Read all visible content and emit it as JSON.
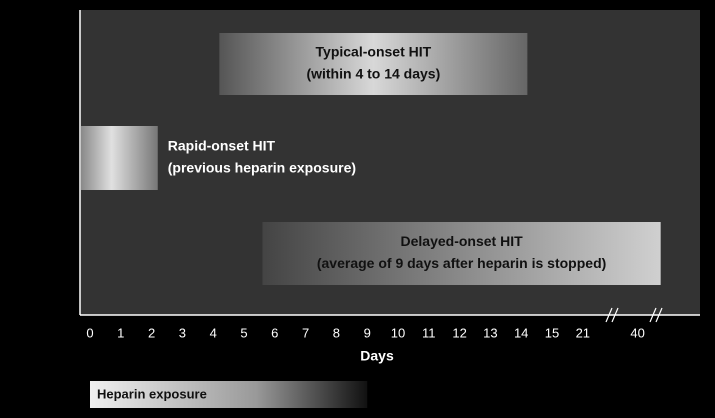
{
  "chart_data": {
    "type": "range_bar",
    "xlabel": "Days",
    "xticks": [
      0,
      1,
      2,
      3,
      4,
      5,
      6,
      7,
      8,
      9,
      10,
      11,
      12,
      13,
      14,
      15,
      21,
      40
    ],
    "bars": [
      {
        "lines": [
          "Typical-onset HIT",
          "(within 4 to 14 days)"
        ],
        "range": [
          4.2,
          14.2
        ]
      },
      {
        "lines": [
          "Rapid-onset HIT",
          "(previous heparin exposure)"
        ],
        "range": [
          -0.3,
          2.2
        ]
      },
      {
        "lines": [
          "Delayed-onset HIT",
          "(average of 9 days after heparin is stopped)"
        ],
        "range": [
          5.6,
          48
        ]
      }
    ],
    "exposure": {
      "label": "Heparin exposure",
      "range": [
        0,
        9
      ]
    }
  }
}
